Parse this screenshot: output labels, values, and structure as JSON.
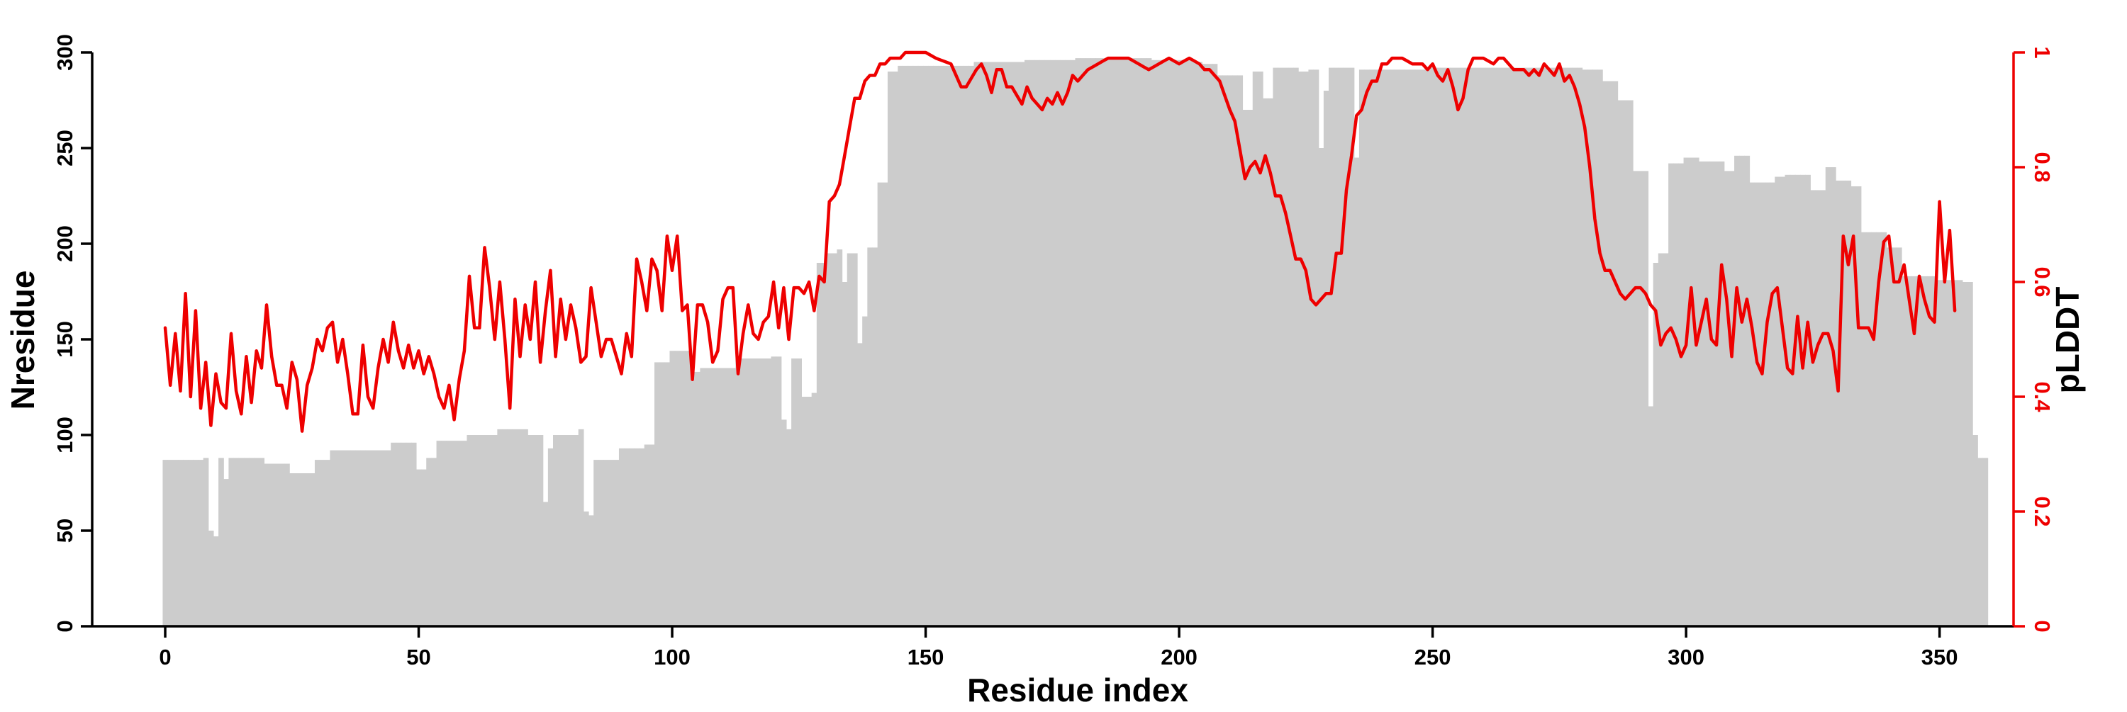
{
  "chart_data": {
    "type": "bar",
    "xlabel": "Residue index",
    "ylabel": "Nresidue",
    "ylabel_right": "pLDDT",
    "xlim": [
      0,
      359
    ],
    "ylim": [
      0,
      300
    ],
    "ylim_right": [
      0,
      1
    ],
    "x_ticks": [
      "0",
      "50",
      "100",
      "150",
      "200",
      "250",
      "300",
      "350"
    ],
    "y_ticks": [
      "0",
      "50",
      "100",
      "150",
      "200",
      "250",
      "300"
    ],
    "y_ticks_right": [
      "0",
      "0.2",
      "0.4",
      "0.6",
      "0.8",
      "1"
    ],
    "grid": false,
    "colors": {
      "bars": "#cccccc",
      "plddt_line": "#ee0000",
      "axis": "#000000",
      "right_axis": "#ee0000"
    },
    "bar_anchors": [
      [
        0,
        87
      ],
      [
        8,
        88
      ],
      [
        9,
        50
      ],
      [
        10,
        47
      ],
      [
        11,
        88
      ],
      [
        12,
        77
      ],
      [
        13,
        88
      ],
      [
        20,
        85
      ],
      [
        25,
        80
      ],
      [
        30,
        87
      ],
      [
        33,
        92
      ],
      [
        45,
        96
      ],
      [
        50,
        82
      ],
      [
        52,
        88
      ],
      [
        54,
        97
      ],
      [
        60,
        100
      ],
      [
        66,
        103
      ],
      [
        72,
        100
      ],
      [
        75,
        65
      ],
      [
        76,
        93
      ],
      [
        77,
        100
      ],
      [
        82,
        103
      ],
      [
        83,
        60
      ],
      [
        84,
        58
      ],
      [
        85,
        87
      ],
      [
        90,
        93
      ],
      [
        95,
        95
      ],
      [
        97,
        138
      ],
      [
        100,
        144
      ],
      [
        104,
        133
      ],
      [
        106,
        135
      ],
      [
        113,
        140
      ],
      [
        120,
        141
      ],
      [
        122,
        108
      ],
      [
        123,
        103
      ],
      [
        124,
        140
      ],
      [
        126,
        120
      ],
      [
        128,
        122
      ],
      [
        129,
        190
      ],
      [
        131,
        195
      ],
      [
        133,
        197
      ],
      [
        134,
        180
      ],
      [
        135,
        195
      ],
      [
        137,
        148
      ],
      [
        138,
        162
      ],
      [
        139,
        198
      ],
      [
        141,
        232
      ],
      [
        143,
        290
      ],
      [
        145,
        293
      ],
      [
        160,
        295
      ],
      [
        170,
        296
      ],
      [
        180,
        297
      ],
      [
        195,
        296
      ],
      [
        203,
        295
      ],
      [
        205,
        294
      ],
      [
        208,
        288
      ],
      [
        213,
        270
      ],
      [
        215,
        290
      ],
      [
        217,
        276
      ],
      [
        219,
        292
      ],
      [
        224,
        290
      ],
      [
        226,
        291
      ],
      [
        228,
        250
      ],
      [
        229,
        280
      ],
      [
        230,
        292
      ],
      [
        235,
        245
      ],
      [
        236,
        291
      ],
      [
        250,
        292
      ],
      [
        265,
        292
      ],
      [
        280,
        291
      ],
      [
        284,
        285
      ],
      [
        287,
        275
      ],
      [
        290,
        238
      ],
      [
        293,
        115
      ],
      [
        294,
        190
      ],
      [
        295,
        195
      ],
      [
        297,
        242
      ],
      [
        300,
        245
      ],
      [
        303,
        243
      ],
      [
        308,
        238
      ],
      [
        310,
        246
      ],
      [
        313,
        232
      ],
      [
        318,
        235
      ],
      [
        320,
        236
      ],
      [
        325,
        228
      ],
      [
        328,
        240
      ],
      [
        330,
        233
      ],
      [
        333,
        230
      ],
      [
        335,
        206
      ],
      [
        340,
        198
      ],
      [
        343,
        183
      ],
      [
        350,
        181
      ],
      [
        355,
        180
      ],
      [
        357,
        100
      ],
      [
        358,
        88
      ]
    ],
    "plddt_anchors": [
      [
        0,
        0.52
      ],
      [
        1,
        0.42
      ],
      [
        2,
        0.51
      ],
      [
        3,
        0.41
      ],
      [
        4,
        0.58
      ],
      [
        5,
        0.4
      ],
      [
        6,
        0.55
      ],
      [
        7,
        0.38
      ],
      [
        8,
        0.46
      ],
      [
        9,
        0.35
      ],
      [
        10,
        0.44
      ],
      [
        11,
        0.39
      ],
      [
        12,
        0.38
      ],
      [
        13,
        0.51
      ],
      [
        14,
        0.41
      ],
      [
        15,
        0.37
      ],
      [
        16,
        0.47
      ],
      [
        17,
        0.39
      ],
      [
        18,
        0.48
      ],
      [
        19,
        0.45
      ],
      [
        20,
        0.56
      ],
      [
        21,
        0.47
      ],
      [
        22,
        0.42
      ],
      [
        23,
        0.42
      ],
      [
        24,
        0.38
      ],
      [
        25,
        0.46
      ],
      [
        26,
        0.43
      ],
      [
        27,
        0.34
      ],
      [
        28,
        0.42
      ],
      [
        29,
        0.45
      ],
      [
        30,
        0.5
      ],
      [
        31,
        0.48
      ],
      [
        32,
        0.52
      ],
      [
        33,
        0.53
      ],
      [
        34,
        0.46
      ],
      [
        35,
        0.5
      ],
      [
        36,
        0.44
      ],
      [
        37,
        0.37
      ],
      [
        38,
        0.37
      ],
      [
        39,
        0.49
      ],
      [
        40,
        0.4
      ],
      [
        41,
        0.38
      ],
      [
        42,
        0.45
      ],
      [
        43,
        0.5
      ],
      [
        44,
        0.46
      ],
      [
        45,
        0.53
      ],
      [
        46,
        0.48
      ],
      [
        47,
        0.45
      ],
      [
        48,
        0.49
      ],
      [
        49,
        0.45
      ],
      [
        50,
        0.48
      ],
      [
        51,
        0.44
      ],
      [
        52,
        0.47
      ],
      [
        53,
        0.44
      ],
      [
        54,
        0.4
      ],
      [
        55,
        0.38
      ],
      [
        56,
        0.42
      ],
      [
        57,
        0.36
      ],
      [
        58,
        0.43
      ],
      [
        59,
        0.48
      ],
      [
        60,
        0.61
      ],
      [
        61,
        0.52
      ],
      [
        62,
        0.52
      ],
      [
        63,
        0.66
      ],
      [
        64,
        0.59
      ],
      [
        65,
        0.5
      ],
      [
        66,
        0.6
      ],
      [
        67,
        0.5
      ],
      [
        68,
        0.38
      ],
      [
        69,
        0.57
      ],
      [
        70,
        0.47
      ],
      [
        71,
        0.56
      ],
      [
        72,
        0.5
      ],
      [
        73,
        0.6
      ],
      [
        74,
        0.46
      ],
      [
        75,
        0.55
      ],
      [
        76,
        0.62
      ],
      [
        77,
        0.47
      ],
      [
        78,
        0.57
      ],
      [
        79,
        0.5
      ],
      [
        80,
        0.56
      ],
      [
        81,
        0.52
      ],
      [
        82,
        0.46
      ],
      [
        83,
        0.47
      ],
      [
        84,
        0.59
      ],
      [
        85,
        0.53
      ],
      [
        86,
        0.47
      ],
      [
        87,
        0.5
      ],
      [
        88,
        0.5
      ],
      [
        89,
        0.47
      ],
      [
        90,
        0.44
      ],
      [
        91,
        0.51
      ],
      [
        92,
        0.47
      ],
      [
        93,
        0.64
      ],
      [
        94,
        0.6
      ],
      [
        95,
        0.55
      ],
      [
        96,
        0.64
      ],
      [
        97,
        0.62
      ],
      [
        98,
        0.55
      ],
      [
        99,
        0.68
      ],
      [
        100,
        0.62
      ],
      [
        101,
        0.68
      ],
      [
        102,
        0.55
      ],
      [
        103,
        0.56
      ],
      [
        104,
        0.43
      ],
      [
        105,
        0.56
      ],
      [
        106,
        0.56
      ],
      [
        107,
        0.53
      ],
      [
        108,
        0.46
      ],
      [
        109,
        0.48
      ],
      [
        110,
        0.57
      ],
      [
        111,
        0.59
      ],
      [
        112,
        0.59
      ],
      [
        113,
        0.44
      ],
      [
        114,
        0.51
      ],
      [
        115,
        0.56
      ],
      [
        116,
        0.51
      ],
      [
        117,
        0.5
      ],
      [
        118,
        0.53
      ],
      [
        119,
        0.54
      ],
      [
        120,
        0.6
      ],
      [
        121,
        0.52
      ],
      [
        122,
        0.59
      ],
      [
        123,
        0.5
      ],
      [
        124,
        0.59
      ],
      [
        125,
        0.59
      ],
      [
        126,
        0.58
      ],
      [
        127,
        0.6
      ],
      [
        128,
        0.55
      ],
      [
        129,
        0.61
      ],
      [
        130,
        0.6
      ],
      [
        131,
        0.74
      ],
      [
        132,
        0.75
      ],
      [
        133,
        0.77
      ],
      [
        134,
        0.82
      ],
      [
        135,
        0.87
      ],
      [
        136,
        0.92
      ],
      [
        137,
        0.92
      ],
      [
        138,
        0.95
      ],
      [
        139,
        0.96
      ],
      [
        140,
        0.96
      ],
      [
        141,
        0.98
      ],
      [
        142,
        0.98
      ],
      [
        143,
        0.99
      ],
      [
        144,
        0.99
      ],
      [
        145,
        0.99
      ],
      [
        146,
        1.0
      ],
      [
        150,
        1.0
      ],
      [
        152,
        0.99
      ],
      [
        155,
        0.98
      ],
      [
        157,
        0.94
      ],
      [
        158,
        0.94
      ],
      [
        160,
        0.97
      ],
      [
        161,
        0.98
      ],
      [
        162,
        0.96
      ],
      [
        163,
        0.93
      ],
      [
        164,
        0.97
      ],
      [
        165,
        0.97
      ],
      [
        166,
        0.94
      ],
      [
        167,
        0.94
      ],
      [
        169,
        0.91
      ],
      [
        170,
        0.94
      ],
      [
        171,
        0.92
      ],
      [
        173,
        0.9
      ],
      [
        174,
        0.92
      ],
      [
        175,
        0.91
      ],
      [
        176,
        0.93
      ],
      [
        177,
        0.91
      ],
      [
        178,
        0.93
      ],
      [
        179,
        0.96
      ],
      [
        180,
        0.95
      ],
      [
        182,
        0.97
      ],
      [
        184,
        0.98
      ],
      [
        186,
        0.99
      ],
      [
        190,
        0.99
      ],
      [
        192,
        0.98
      ],
      [
        194,
        0.97
      ],
      [
        196,
        0.98
      ],
      [
        198,
        0.99
      ],
      [
        200,
        0.98
      ],
      [
        202,
        0.99
      ],
      [
        204,
        0.98
      ],
      [
        205,
        0.97
      ],
      [
        206,
        0.97
      ],
      [
        208,
        0.95
      ],
      [
        210,
        0.9
      ],
      [
        211,
        0.88
      ],
      [
        212,
        0.83
      ],
      [
        213,
        0.78
      ],
      [
        214,
        0.8
      ],
      [
        215,
        0.81
      ],
      [
        216,
        0.79
      ],
      [
        217,
        0.82
      ],
      [
        218,
        0.79
      ],
      [
        219,
        0.75
      ],
      [
        220,
        0.75
      ],
      [
        221,
        0.72
      ],
      [
        222,
        0.68
      ],
      [
        223,
        0.64
      ],
      [
        224,
        0.64
      ],
      [
        225,
        0.62
      ],
      [
        226,
        0.57
      ],
      [
        227,
        0.56
      ],
      [
        228,
        0.57
      ],
      [
        229,
        0.58
      ],
      [
        230,
        0.58
      ],
      [
        231,
        0.65
      ],
      [
        232,
        0.65
      ],
      [
        233,
        0.76
      ],
      [
        234,
        0.82
      ],
      [
        235,
        0.89
      ],
      [
        236,
        0.9
      ],
      [
        237,
        0.93
      ],
      [
        238,
        0.95
      ],
      [
        239,
        0.95
      ],
      [
        240,
        0.98
      ],
      [
        241,
        0.98
      ],
      [
        242,
        0.99
      ],
      [
        244,
        0.99
      ],
      [
        246,
        0.98
      ],
      [
        248,
        0.98
      ],
      [
        249,
        0.97
      ],
      [
        250,
        0.98
      ],
      [
        251,
        0.96
      ],
      [
        252,
        0.95
      ],
      [
        253,
        0.97
      ],
      [
        254,
        0.94
      ],
      [
        255,
        0.9
      ],
      [
        256,
        0.92
      ],
      [
        257,
        0.97
      ],
      [
        258,
        0.99
      ],
      [
        260,
        0.99
      ],
      [
        262,
        0.98
      ],
      [
        263,
        0.99
      ],
      [
        264,
        0.99
      ],
      [
        265,
        0.98
      ],
      [
        266,
        0.97
      ],
      [
        268,
        0.97
      ],
      [
        269,
        0.96
      ],
      [
        270,
        0.97
      ],
      [
        271,
        0.96
      ],
      [
        272,
        0.98
      ],
      [
        273,
        0.97
      ],
      [
        274,
        0.96
      ],
      [
        275,
        0.98
      ],
      [
        276,
        0.95
      ],
      [
        277,
        0.96
      ],
      [
        278,
        0.94
      ],
      [
        279,
        0.91
      ],
      [
        280,
        0.87
      ],
      [
        281,
        0.8
      ],
      [
        282,
        0.71
      ],
      [
        283,
        0.65
      ],
      [
        284,
        0.62
      ],
      [
        285,
        0.62
      ],
      [
        286,
        0.6
      ],
      [
        287,
        0.58
      ],
      [
        288,
        0.57
      ],
      [
        289,
        0.58
      ],
      [
        290,
        0.59
      ],
      [
        291,
        0.59
      ],
      [
        292,
        0.58
      ],
      [
        293,
        0.56
      ],
      [
        294,
        0.55
      ],
      [
        295,
        0.49
      ],
      [
        296,
        0.51
      ],
      [
        297,
        0.52
      ],
      [
        298,
        0.5
      ],
      [
        299,
        0.47
      ],
      [
        300,
        0.49
      ],
      [
        301,
        0.59
      ],
      [
        302,
        0.49
      ],
      [
        303,
        0.53
      ],
      [
        304,
        0.57
      ],
      [
        305,
        0.5
      ],
      [
        306,
        0.49
      ],
      [
        307,
        0.63
      ],
      [
        308,
        0.57
      ],
      [
        309,
        0.47
      ],
      [
        310,
        0.59
      ],
      [
        311,
        0.53
      ],
      [
        312,
        0.57
      ],
      [
        313,
        0.52
      ],
      [
        314,
        0.46
      ],
      [
        315,
        0.44
      ],
      [
        316,
        0.53
      ],
      [
        317,
        0.58
      ],
      [
        318,
        0.59
      ],
      [
        319,
        0.52
      ],
      [
        320,
        0.45
      ],
      [
        321,
        0.44
      ],
      [
        322,
        0.54
      ],
      [
        323,
        0.45
      ],
      [
        324,
        0.53
      ],
      [
        325,
        0.46
      ],
      [
        326,
        0.49
      ],
      [
        327,
        0.51
      ],
      [
        328,
        0.51
      ],
      [
        329,
        0.48
      ],
      [
        330,
        0.41
      ],
      [
        331,
        0.68
      ],
      [
        332,
        0.63
      ],
      [
        333,
        0.68
      ],
      [
        334,
        0.52
      ],
      [
        335,
        0.52
      ],
      [
        336,
        0.52
      ],
      [
        337,
        0.5
      ],
      [
        338,
        0.6
      ],
      [
        339,
        0.67
      ],
      [
        340,
        0.68
      ],
      [
        341,
        0.6
      ],
      [
        342,
        0.6
      ],
      [
        343,
        0.63
      ],
      [
        344,
        0.57
      ],
      [
        345,
        0.51
      ],
      [
        346,
        0.61
      ],
      [
        347,
        0.57
      ],
      [
        348,
        0.54
      ],
      [
        349,
        0.53
      ],
      [
        350,
        0.74
      ],
      [
        351,
        0.6
      ],
      [
        352,
        0.69
      ],
      [
        353,
        0.55
      ]
    ]
  }
}
